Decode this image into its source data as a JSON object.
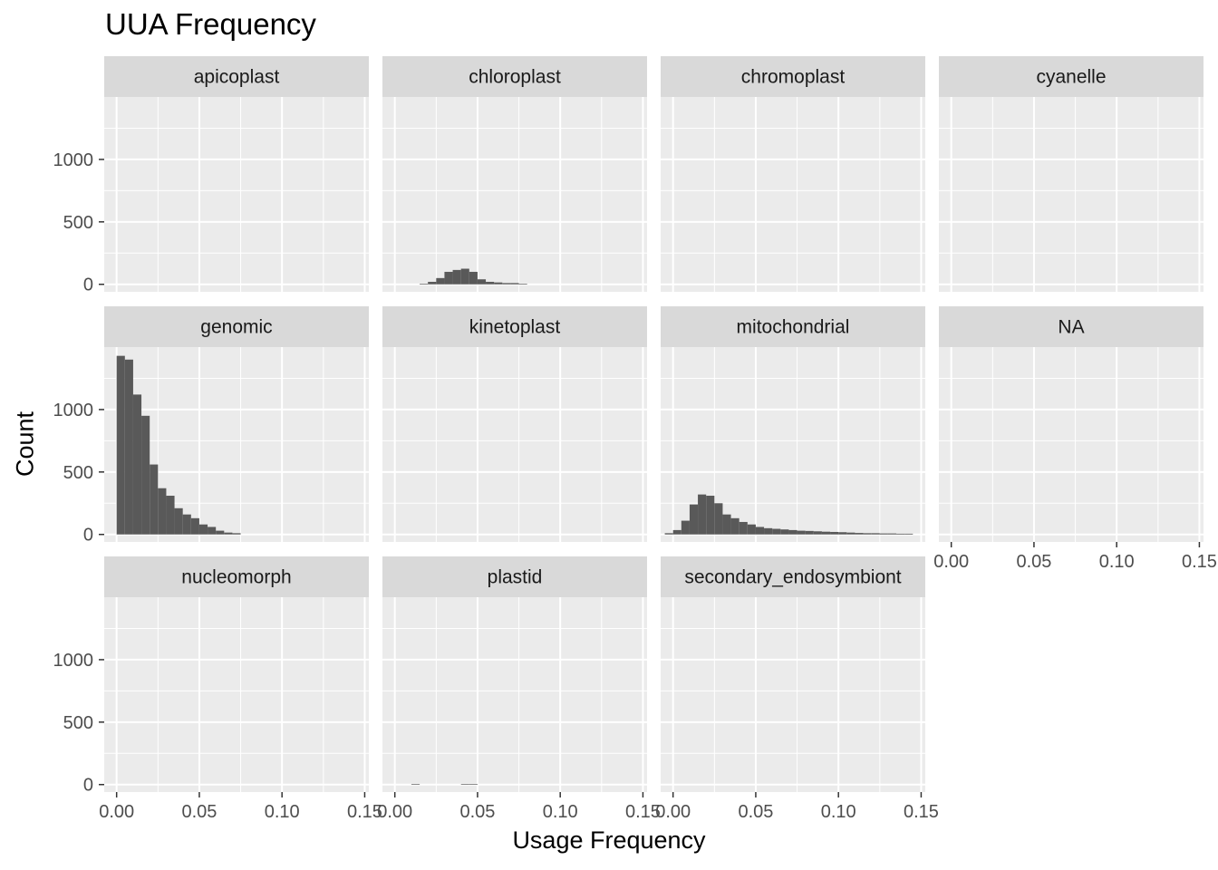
{
  "chart_data": {
    "type": "bar",
    "title": "UUA Frequency",
    "xlabel": "Usage Frequency",
    "ylabel": "Count",
    "xlim": [
      -0.0075,
      0.1525
    ],
    "ylim": [
      -60,
      1500
    ],
    "x_ticks": [
      0.0,
      0.05,
      0.1,
      0.15
    ],
    "x_tick_labels": [
      "0.00",
      "0.05",
      "0.10",
      "0.15"
    ],
    "y_ticks": [
      0,
      500,
      1000
    ],
    "y_tick_labels": [
      "0",
      "500",
      "1000"
    ],
    "bin_width": 0.005,
    "grid": true,
    "bar_color": "#595959",
    "panel_background": "#ebebeb",
    "strip_background": "#d9d9d9",
    "panels": [
      {
        "name": "apicoplast",
        "bins": []
      },
      {
        "name": "chloroplast",
        "bins": [
          [
            0.015,
            5
          ],
          [
            0.02,
            20
          ],
          [
            0.025,
            50
          ],
          [
            0.03,
            100
          ],
          [
            0.035,
            115
          ],
          [
            0.04,
            125
          ],
          [
            0.045,
            100
          ],
          [
            0.05,
            40
          ],
          [
            0.055,
            20
          ],
          [
            0.06,
            15
          ],
          [
            0.065,
            10
          ],
          [
            0.07,
            10
          ],
          [
            0.075,
            5
          ]
        ]
      },
      {
        "name": "chromoplast",
        "bins": []
      },
      {
        "name": "cyanelle",
        "bins": []
      },
      {
        "name": "genomic",
        "bins": [
          [
            0.0,
            1430
          ],
          [
            0.005,
            1400
          ],
          [
            0.01,
            1120
          ],
          [
            0.015,
            950
          ],
          [
            0.02,
            560
          ],
          [
            0.025,
            370
          ],
          [
            0.03,
            310
          ],
          [
            0.035,
            210
          ],
          [
            0.04,
            160
          ],
          [
            0.045,
            130
          ],
          [
            0.05,
            80
          ],
          [
            0.055,
            60
          ],
          [
            0.06,
            30
          ],
          [
            0.065,
            15
          ],
          [
            0.07,
            10
          ]
        ]
      },
      {
        "name": "kinetoplast",
        "bins": []
      },
      {
        "name": "mitochondrial",
        "bins": [
          [
            -0.005,
            10
          ],
          [
            0.0,
            35
          ],
          [
            0.005,
            110
          ],
          [
            0.01,
            240
          ],
          [
            0.015,
            320
          ],
          [
            0.02,
            310
          ],
          [
            0.025,
            250
          ],
          [
            0.03,
            160
          ],
          [
            0.035,
            130
          ],
          [
            0.04,
            100
          ],
          [
            0.045,
            80
          ],
          [
            0.05,
            60
          ],
          [
            0.055,
            50
          ],
          [
            0.06,
            45
          ],
          [
            0.065,
            40
          ],
          [
            0.07,
            35
          ],
          [
            0.075,
            30
          ],
          [
            0.08,
            28
          ],
          [
            0.085,
            25
          ],
          [
            0.09,
            22
          ],
          [
            0.095,
            20
          ],
          [
            0.1,
            18
          ],
          [
            0.105,
            15
          ],
          [
            0.11,
            12
          ],
          [
            0.115,
            10
          ],
          [
            0.12,
            10
          ],
          [
            0.125,
            8
          ],
          [
            0.13,
            8
          ],
          [
            0.135,
            6
          ],
          [
            0.14,
            6
          ]
        ]
      },
      {
        "name": "NA",
        "bins": []
      },
      {
        "name": "nucleomorph",
        "bins": []
      },
      {
        "name": "plastid",
        "bins": [
          [
            0.01,
            5
          ],
          [
            0.04,
            5
          ],
          [
            0.045,
            5
          ]
        ]
      },
      {
        "name": "secondary_endosymbiont",
        "bins": []
      }
    ]
  }
}
